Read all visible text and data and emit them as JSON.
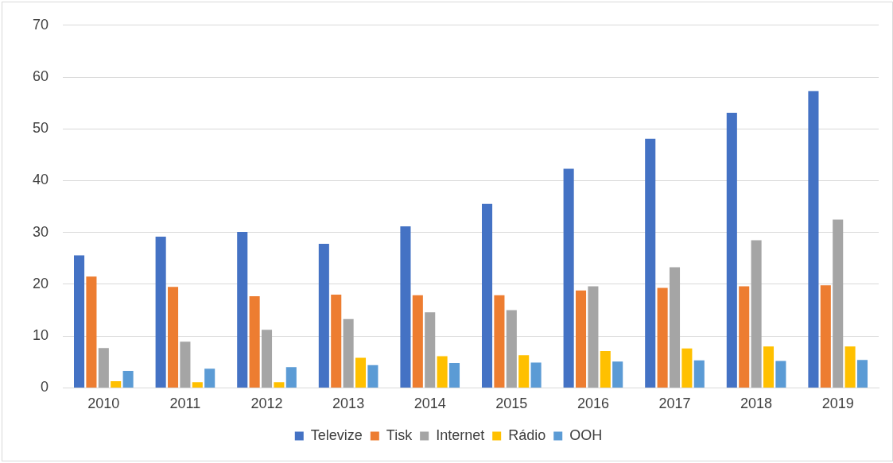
{
  "chart_data": {
    "type": "bar",
    "categories": [
      "2010",
      "2011",
      "2012",
      "2013",
      "2014",
      "2015",
      "2016",
      "2017",
      "2018",
      "2019"
    ],
    "series": [
      {
        "name": "Televize",
        "color": "#4472c4",
        "values": [
          25.6,
          29.2,
          30.1,
          27.8,
          31.2,
          35.5,
          42.3,
          48.1,
          53.1,
          57.3
        ]
      },
      {
        "name": "Tisk",
        "color": "#ed7d31",
        "values": [
          21.5,
          19.5,
          17.7,
          18.0,
          17.9,
          17.9,
          18.8,
          19.3,
          19.6,
          19.8
        ]
      },
      {
        "name": "Internet",
        "color": "#a5a5a5",
        "values": [
          7.7,
          8.9,
          11.2,
          13.3,
          14.6,
          15.0,
          19.6,
          23.3,
          28.5,
          32.5
        ]
      },
      {
        "name": "Rádio",
        "color": "#ffc000",
        "values": [
          1.3,
          1.1,
          1.1,
          5.8,
          6.1,
          6.3,
          7.1,
          7.6,
          8.0,
          8.0
        ]
      },
      {
        "name": "OOH",
        "color": "#5b9bd5",
        "values": [
          3.3,
          3.7,
          4.0,
          4.4,
          4.8,
          4.9,
          5.1,
          5.3,
          5.2,
          5.4
        ]
      }
    ],
    "ylim": [
      0,
      70
    ],
    "yticks": [
      0,
      10,
      20,
      30,
      40,
      50,
      60,
      70
    ],
    "grid": "y",
    "legend": "bottom"
  }
}
